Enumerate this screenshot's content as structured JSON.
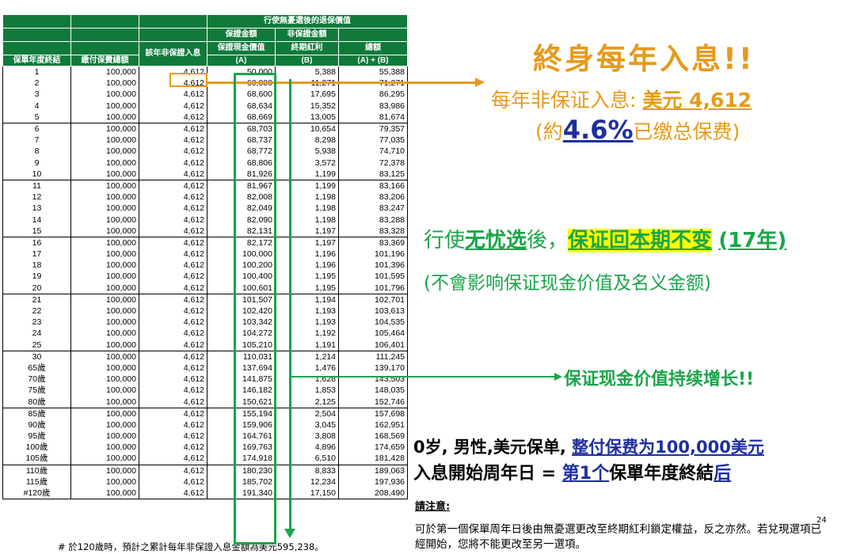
{
  "table": {
    "header": {
      "group": "行使無憂選後的退保價值",
      "guaranteed_amount": "保證金額",
      "non_guaranteed_amount": "非保證金額",
      "col_year": "保單年度終結",
      "col_premium": "繳付保費總額",
      "col_interest": "該年非保證入息",
      "col_cash_value": "保證現金價值",
      "col_cash_value_sub": "(A)",
      "col_bonus": "終期紅利",
      "col_bonus_sub": "(B)",
      "col_total": "總額",
      "col_total_sub": "(A) + (B)"
    },
    "rows": [
      [
        "1",
        "100,000",
        "4,612",
        "50,000",
        "5,388",
        "55,388"
      ],
      [
        "2",
        "100,000",
        "4,612",
        "60,000",
        "11,271",
        "71,271"
      ],
      [
        "3",
        "100,000",
        "4,612",
        "68,600",
        "17,695",
        "86,295"
      ],
      [
        "4",
        "100,000",
        "4,612",
        "68,634",
        "15,352",
        "83,986"
      ],
      [
        "5",
        "100,000",
        "4,612",
        "68,669",
        "13,005",
        "81,674"
      ],
      [
        "6",
        "100,000",
        "4,612",
        "68,703",
        "10,654",
        "79,357"
      ],
      [
        "7",
        "100,000",
        "4,612",
        "68,737",
        "8,298",
        "77,035"
      ],
      [
        "8",
        "100,000",
        "4,612",
        "68,772",
        "5,938",
        "74,710"
      ],
      [
        "9",
        "100,000",
        "4,612",
        "68,806",
        "3,572",
        "72,378"
      ],
      [
        "10",
        "100,000",
        "4,612",
        "81,926",
        "1,199",
        "83,125"
      ],
      [
        "11",
        "100,000",
        "4,612",
        "81,967",
        "1,199",
        "83,166"
      ],
      [
        "12",
        "100,000",
        "4,612",
        "82,008",
        "1,198",
        "83,206"
      ],
      [
        "13",
        "100,000",
        "4,612",
        "82,049",
        "1,198",
        "83,247"
      ],
      [
        "14",
        "100,000",
        "4,612",
        "82,090",
        "1,198",
        "83,288"
      ],
      [
        "15",
        "100,000",
        "4,612",
        "82,131",
        "1,197",
        "83,328"
      ],
      [
        "16",
        "100,000",
        "4,612",
        "82,172",
        "1,197",
        "83,369"
      ],
      [
        "17",
        "100,000",
        "4,612",
        "100,000",
        "1,196",
        "101,196"
      ],
      [
        "18",
        "100,000",
        "4,612",
        "100,200",
        "1,196",
        "101,396"
      ],
      [
        "19",
        "100,000",
        "4,612",
        "100,400",
        "1,195",
        "101,595"
      ],
      [
        "20",
        "100,000",
        "4,612",
        "100,601",
        "1,195",
        "101,796"
      ],
      [
        "21",
        "100,000",
        "4,612",
        "101,507",
        "1,194",
        "102,701"
      ],
      [
        "22",
        "100,000",
        "4,612",
        "102,420",
        "1,193",
        "103,613"
      ],
      [
        "23",
        "100,000",
        "4,612",
        "103,342",
        "1,193",
        "104,535"
      ],
      [
        "24",
        "100,000",
        "4,612",
        "104,272",
        "1,192",
        "105,464"
      ],
      [
        "25",
        "100,000",
        "4,612",
        "105,210",
        "1,191",
        "106,401"
      ],
      [
        "30",
        "100,000",
        "4,612",
        "110,031",
        "1,214",
        "111,245"
      ],
      [
        "65歲",
        "100,000",
        "4,612",
        "137,694",
        "1,476",
        "139,170"
      ],
      [
        "70歲",
        "100,000",
        "4,612",
        "141,875",
        "1,628",
        "143,503"
      ],
      [
        "75歲",
        "100,000",
        "4,612",
        "146,182",
        "1,853",
        "148,035"
      ],
      [
        "80歲",
        "100,000",
        "4,612",
        "150,621",
        "2,125",
        "152,746"
      ],
      [
        "85歲",
        "100,000",
        "4,612",
        "155,194",
        "2,504",
        "157,698"
      ],
      [
        "90歲",
        "100,000",
        "4,612",
        "159,906",
        "3,045",
        "162,951"
      ],
      [
        "95歲",
        "100,000",
        "4,612",
        "164,761",
        "3,808",
        "168,569"
      ],
      [
        "100歲",
        "100,000",
        "4,612",
        "169,763",
        "4,896",
        "174,659"
      ],
      [
        "105歲",
        "100,000",
        "4,612",
        "174,918",
        "6,510",
        "181,428"
      ],
      [
        "110歲",
        "100,000",
        "4,612",
        "180,230",
        "8,833",
        "189,063"
      ],
      [
        "115歲",
        "100,000",
        "4,612",
        "185,702",
        "12,234",
        "197,936"
      ],
      [
        "#120歲",
        "100,000",
        "4,612",
        "191,340",
        "17,150",
        "208,490"
      ]
    ],
    "footnote": "# 於120歲時，預計之累計每年非保證入息金額為美元595,238。"
  },
  "callouts": {
    "title": "終身每年入息!!",
    "interest_prefix": "每年非保证入息: ",
    "interest_value": "美元 4,612",
    "pct_open": "(約",
    "pct_value": "4.6%",
    "pct_close": "已缴总保费)",
    "exercise_a": "行使",
    "exercise_b": "无忧选",
    "exercise_c": "後，",
    "exercise_hl": "保证回本期不变",
    "exercise_years": "(17年)",
    "note": "(不會影响保证现金价值及名义金额)",
    "growth": "保证现金价值持续增长!!",
    "line1_a": "0岁, 男性,美元保单, ",
    "line1_b": "整付保费为100,000美元",
    "line2_a": "入息開始周年日 = ",
    "line2_b": "第1个",
    "line2_c": "保單年度終結",
    "line2_d": "后"
  },
  "notice": {
    "heading": "請注意:",
    "page_number": "24",
    "text": "可於第一個保單周年日後由無憂選更改至終期紅利鎖定權益，反之亦然。若兌現選項已經開始，您將不能更改至另一選項。"
  },
  "colors": {
    "header_green": "#0f7a3a",
    "accent_orange": "#e69a1c",
    "accent_green": "#1aa54a",
    "accent_blue": "#1f2f9e",
    "highlight_yellow": "#ffff00"
  }
}
